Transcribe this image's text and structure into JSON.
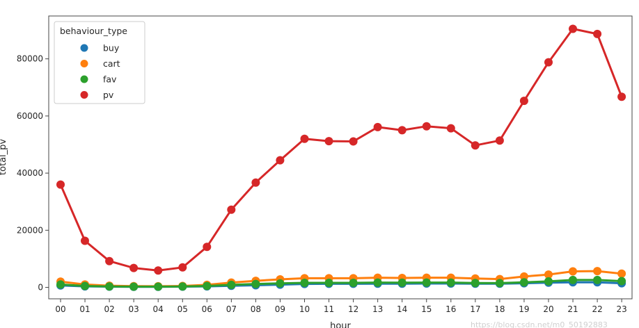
{
  "chart_data": {
    "type": "line",
    "xlabel": "hour",
    "ylabel": "total_pv",
    "categories": [
      "00",
      "01",
      "02",
      "03",
      "04",
      "05",
      "06",
      "07",
      "08",
      "09",
      "10",
      "11",
      "12",
      "13",
      "14",
      "15",
      "16",
      "17",
      "18",
      "19",
      "20",
      "21",
      "22",
      "23"
    ],
    "ylim": [
      -4000,
      95000
    ],
    "yticks": [
      0,
      20000,
      40000,
      60000,
      80000
    ],
    "grid": false,
    "legend": {
      "title": "behaviour_type",
      "placement": "top-left"
    },
    "series": [
      {
        "name": "buy",
        "color": "#1f77b4",
        "values": [
          700,
          350,
          250,
          200,
          200,
          250,
          350,
          550,
          750,
          950,
          1200,
          1250,
          1250,
          1300,
          1300,
          1350,
          1350,
          1300,
          1300,
          1450,
          1650,
          1800,
          1800,
          1450
        ]
      },
      {
        "name": "cart",
        "color": "#ff7f0e",
        "values": [
          2000,
          1000,
          600,
          450,
          400,
          500,
          900,
          1700,
          2300,
          2800,
          3200,
          3200,
          3200,
          3400,
          3300,
          3400,
          3400,
          3100,
          2900,
          3800,
          4500,
          5600,
          5700,
          4800
        ]
      },
      {
        "name": "fav",
        "color": "#2ca02c",
        "values": [
          1000,
          500,
          300,
          250,
          250,
          300,
          500,
          900,
          1200,
          1400,
          1600,
          1600,
          1600,
          1700,
          1650,
          1700,
          1700,
          1550,
          1500,
          1800,
          2100,
          2600,
          2600,
          2200
        ]
      },
      {
        "name": "pv",
        "color": "#d62728",
        "values": [
          36000,
          16300,
          9200,
          6800,
          5900,
          7000,
          14200,
          27200,
          36700,
          44500,
          52000,
          51200,
          51100,
          56100,
          55000,
          56400,
          55700,
          49700,
          51400,
          65300,
          78800,
          90500,
          88700,
          66700
        ]
      }
    ],
    "watermark": "https://blog.csdn.net/m0_50192883"
  }
}
